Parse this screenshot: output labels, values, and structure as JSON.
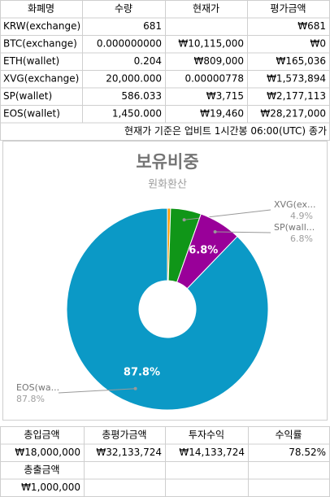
{
  "table": {
    "header": [
      "화폐명",
      "수량",
      "현재가",
      "평가금액"
    ],
    "rows": [
      [
        "KRW(exchange)",
        "681",
        null,
        "₩681"
      ],
      [
        "BTC(exchange)",
        "0.000000000",
        "₩10,115,000",
        "₩0"
      ],
      [
        "ETH(wallet)",
        "0.204",
        "₩809,000",
        "₩165,036"
      ],
      [
        "XVG(exchange)",
        "20,000.000",
        "0.00000778",
        "₩1,573,894"
      ],
      [
        "SP(wallet)",
        "586.033",
        "₩3,715",
        "₩2,177,113"
      ],
      [
        "EOS(wallet)",
        "1,450.000",
        "₩19,460",
        "₩28,217,000"
      ]
    ],
    "note": "현재가 기준은 업비트 1시간봉 06:00(UTC) 종가"
  },
  "chart_data": {
    "type": "pie",
    "title": "보유비중",
    "subtitle": "원화환산",
    "donut": true,
    "categories": [
      null,
      "XVG(ex...",
      "SP(wall...",
      "EOS(wa..."
    ],
    "values": [
      0.5,
      4.9,
      6.8,
      87.8
    ],
    "value_labels": [
      null,
      "4.9%",
      "6.8%",
      "87.8%"
    ],
    "colors": [
      "#ff9900",
      "#109618",
      "#990099",
      "#0b99c6"
    ]
  },
  "summary": {
    "header": [
      "총입금액",
      "총평가금액",
      "투자수익",
      "수익률"
    ],
    "values": [
      "₩18,000,000",
      "₩32,133,724",
      "₩14,133,724",
      "78.52%"
    ],
    "withdraw_label": "총출금액",
    "withdraw_value": "₩1,000,000"
  }
}
